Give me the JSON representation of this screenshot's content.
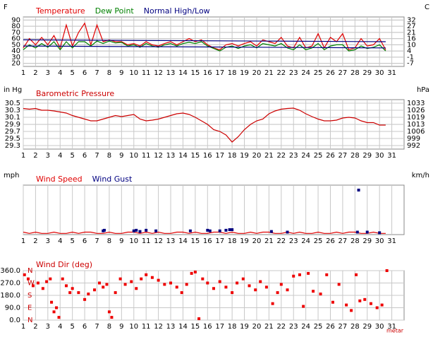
{
  "chart_data": [
    {
      "type": "line",
      "ylabel": "F",
      "y2label": "C",
      "xlim": [
        1,
        32
      ],
      "xticks": [
        1,
        2,
        3,
        4,
        5,
        6,
        7,
        8,
        9,
        10,
        11,
        12,
        13,
        14,
        15,
        16,
        17,
        18,
        19,
        20,
        21,
        22,
        23,
        24,
        25,
        26,
        27,
        28,
        29,
        30,
        31
      ],
      "ylim": [
        15,
        95
      ],
      "yticks": [
        20,
        30,
        40,
        50,
        60,
        70,
        80,
        90
      ],
      "y2lim": [
        -9.4,
        35
      ],
      "y2ticks": [
        {
          "value": -6.7,
          "label": "-7"
        },
        {
          "value": -1.1,
          "label": "-1"
        },
        {
          "value": 4.4,
          "label": "4"
        },
        {
          "value": 10,
          "label": "10"
        },
        {
          "value": 15.6,
          "label": "16"
        },
        {
          "value": 21.1,
          "label": "21"
        },
        {
          "value": 26.7,
          "label": "27"
        },
        {
          "value": 32.2,
          "label": "32"
        }
      ],
      "grid": true,
      "x": [
        1,
        1.5,
        2,
        2.5,
        3,
        3.5,
        4,
        4.5,
        5,
        5.5,
        6,
        6.5,
        7,
        7.5,
        8,
        8.5,
        9,
        9.5,
        10,
        10.5,
        11,
        11.5,
        12,
        12.5,
        13,
        13.5,
        14,
        14.5,
        15,
        15.5,
        16,
        16.5,
        17,
        17.5,
        18,
        18.5,
        19,
        19.5,
        20,
        20.5,
        21,
        21.5,
        22,
        22.5,
        23,
        23.5,
        24,
        24.5,
        25,
        25.5,
        26,
        26.5,
        27,
        27.5,
        28,
        28.5,
        29,
        29.5,
        30,
        30.5
      ],
      "series": [
        {
          "name": "Temperature",
          "color": "#e00000",
          "type": "line",
          "values": [
            45,
            60,
            50,
            62,
            50,
            65,
            45,
            82,
            48,
            70,
            85,
            50,
            82,
            55,
            58,
            55,
            55,
            50,
            52,
            48,
            55,
            50,
            48,
            52,
            55,
            50,
            55,
            60,
            55,
            58,
            50,
            45,
            42,
            50,
            52,
            48,
            52,
            55,
            48,
            58,
            55,
            52,
            62,
            48,
            45,
            62,
            45,
            48,
            68,
            45,
            62,
            55,
            68,
            42,
            45,
            60,
            48,
            50,
            60,
            42
          ]
        },
        {
          "name": "Dew Point",
          "color": "#008000",
          "type": "line",
          "values": [
            42,
            50,
            45,
            52,
            46,
            55,
            42,
            55,
            45,
            55,
            55,
            48,
            56,
            52,
            56,
            53,
            54,
            48,
            50,
            46,
            52,
            48,
            46,
            50,
            52,
            48,
            52,
            54,
            52,
            55,
            48,
            44,
            40,
            46,
            48,
            44,
            48,
            50,
            45,
            52,
            50,
            48,
            52,
            45,
            42,
            50,
            42,
            45,
            52,
            42,
            48,
            50,
            50,
            40,
            42,
            48,
            44,
            46,
            50,
            40
          ]
        },
        {
          "name": "Normal High/Low",
          "color": "#000080",
          "type": "line",
          "x": [
            1,
            30.5,
            null,
            1,
            30.5
          ],
          "values": [
            58,
            55,
            null,
            48,
            45
          ]
        }
      ]
    },
    {
      "type": "line",
      "title": "Barometric Pressure",
      "title_color": "#cc0000",
      "ylabel": "in Hg",
      "y2label": "hPa",
      "xlim": [
        1,
        32
      ],
      "xticks": [
        1,
        2,
        3,
        4,
        5,
        6,
        7,
        8,
        9,
        10,
        11,
        12,
        13,
        14,
        15,
        16,
        17,
        18,
        19,
        20,
        21,
        22,
        23,
        24,
        25,
        26,
        27,
        28,
        29,
        30,
        31
      ],
      "ylim": [
        29.2,
        30.6
      ],
      "yticks": [
        29.3,
        29.5,
        29.7,
        29.9,
        30.1,
        30.3,
        30.5
      ],
      "y2lim": [
        988.8,
        1036.3
      ],
      "y2ticks": [
        {
          "value": 992.2,
          "label": "992"
        },
        {
          "value": 999.0,
          "label": "999"
        },
        {
          "value": 1005.8,
          "label": "1006"
        },
        {
          "value": 1012.5,
          "label": "1013"
        },
        {
          "value": 1019.3,
          "label": "1019"
        },
        {
          "value": 1026.1,
          "label": "1026"
        },
        {
          "value": 1032.9,
          "label": "1033"
        }
      ],
      "grid": true,
      "x": [
        1,
        1.5,
        2,
        2.5,
        3,
        3.5,
        4,
        4.5,
        5,
        5.5,
        6,
        6.5,
        7,
        7.5,
        8,
        8.5,
        9,
        9.5,
        10,
        10.5,
        11,
        11.5,
        12,
        12.5,
        13,
        13.5,
        14,
        14.5,
        15,
        15.5,
        16,
        16.5,
        17,
        17.5,
        18,
        18.5,
        19,
        19.5,
        20,
        20.5,
        21,
        21.5,
        22,
        22.5,
        23,
        23.5,
        24,
        24.5,
        25,
        25.5,
        26,
        26.5,
        27,
        27.5,
        28,
        28.5,
        29,
        29.5,
        30,
        30.5
      ],
      "series": [
        {
          "color": "#cc0000",
          "type": "line",
          "values": [
            30.35,
            30.33,
            30.35,
            30.3,
            30.3,
            30.28,
            30.25,
            30.22,
            30.15,
            30.1,
            30.05,
            30.0,
            30.0,
            30.05,
            30.1,
            30.15,
            30.12,
            30.15,
            30.18,
            30.05,
            30.0,
            30.02,
            30.05,
            30.1,
            30.15,
            30.2,
            30.22,
            30.18,
            30.1,
            30.0,
            29.9,
            29.75,
            29.7,
            29.6,
            29.4,
            29.55,
            29.75,
            29.9,
            30.0,
            30.05,
            30.2,
            30.28,
            30.33,
            30.35,
            30.36,
            30.3,
            30.2,
            30.12,
            30.05,
            30.0,
            30.0,
            30.02,
            30.08,
            30.1,
            30.08,
            30.0,
            29.95,
            29.95,
            29.88,
            29.88
          ]
        }
      ]
    },
    {
      "type": "line",
      "ylabel": "mph",
      "y2label": "km/h",
      "xlim": [
        1,
        32
      ],
      "xticks": [
        1,
        2,
        3,
        4,
        5,
        6,
        7,
        8,
        9,
        10,
        11,
        12,
        13,
        14,
        15,
        16,
        17,
        18,
        19,
        20,
        21,
        22,
        23,
        24,
        25,
        26,
        27,
        28,
        29,
        30,
        31
      ],
      "ylim": [
        0,
        40
      ],
      "grid": true,
      "x": [
        1,
        1.5,
        2,
        2.5,
        3,
        3.5,
        4,
        4.5,
        5,
        5.5,
        6,
        6.5,
        7,
        7.5,
        8,
        8.5,
        9,
        9.5,
        10,
        10.5,
        11,
        11.5,
        12,
        12.5,
        13,
        13.5,
        14,
        14.5,
        15,
        15.5,
        16,
        16.5,
        17,
        17.5,
        18,
        18.5,
        19,
        19.5,
        20,
        20.5,
        21,
        21.5,
        22,
        22.5,
        23,
        23.5,
        24,
        24.5,
        25,
        25.5,
        26,
        26.5,
        27,
        27.5,
        28,
        28.5,
        29,
        29.5,
        30,
        30.5
      ],
      "series": [
        {
          "name": "Wind Speed",
          "color": "#e00000",
          "type": "line",
          "values": [
            2,
            1,
            2,
            1,
            1,
            2,
            1,
            1,
            2,
            1,
            2,
            2,
            1,
            1,
            2,
            1,
            1,
            2,
            2,
            1,
            2,
            1,
            2,
            1,
            1,
            2,
            2,
            1,
            2,
            1,
            1,
            2,
            2,
            1,
            2,
            1,
            1,
            2,
            1,
            2,
            2,
            1,
            1,
            2,
            1,
            2,
            1,
            1,
            2,
            1,
            1,
            2,
            1,
            2,
            2,
            1,
            1,
            2,
            1,
            1
          ]
        },
        {
          "name": "Wind Gust",
          "color": "#000080",
          "type": "scatter",
          "x": [
            7.5,
            7.6,
            10,
            10.2,
            10.5,
            11,
            11.8,
            14.6,
            16,
            16.2,
            17,
            17.5,
            17.8,
            18,
            21.2,
            22.5,
            28.2,
            28.3,
            29,
            30
          ],
          "values": [
            3,
            3.5,
            3,
            3.5,
            2.5,
            3.5,
            3,
            3,
            3.5,
            3,
            3,
            3.5,
            4,
            4,
            2.5,
            2,
            2,
            36,
            2,
            1.5
          ]
        }
      ]
    },
    {
      "type": "scatter",
      "title": "Wind Dir (deg)",
      "title_color": "#cc0000",
      "source": "metar",
      "xlim": [
        1,
        32
      ],
      "xticks": [
        1,
        2,
        3,
        4,
        5,
        6,
        7,
        8,
        9,
        10,
        11,
        12,
        13,
        14,
        15,
        16,
        17,
        18,
        19,
        20,
        21,
        22,
        23,
        24,
        25,
        26,
        27,
        28,
        29,
        30,
        31
      ],
      "ylim": [
        0,
        360
      ],
      "yticks": [
        {
          "value": 0,
          "label": "0.0"
        },
        {
          "value": 90,
          "label": "90.0"
        },
        {
          "value": 180,
          "label": "180.0"
        },
        {
          "value": 270,
          "label": "270.0"
        },
        {
          "value": 360,
          "label": "360.0"
        }
      ],
      "compass_labels": [
        "N",
        "E",
        "S",
        "W",
        "N"
      ],
      "grid": true,
      "series": [
        {
          "color": "#ee0000",
          "type": "scatter",
          "x": [
            1.1,
            1.4,
            1.8,
            2.2,
            2.6,
            2.9,
            3.2,
            3.3,
            3.5,
            3.7,
            3.9,
            4.2,
            4.5,
            4.8,
            5,
            5.5,
            6,
            6.3,
            6.8,
            7.2,
            7.5,
            7.8,
            8,
            8.2,
            8.5,
            8.9,
            9.3,
            9.8,
            10.2,
            10.6,
            11,
            11.5,
            12,
            12.5,
            13,
            13.5,
            13.9,
            14.3,
            14.7,
            15,
            15.3,
            15.6,
            16,
            16.5,
            17,
            17.5,
            18,
            18.4,
            18.9,
            19.4,
            19.9,
            20.3,
            20.8,
            21.3,
            21.7,
            22,
            22.5,
            23,
            23.5,
            23.8,
            24.2,
            24.6,
            25.2,
            25.7,
            26.2,
            26.7,
            27.3,
            27.7,
            28.1,
            28.4,
            28.8,
            29.3,
            29.8,
            30.2,
            30.6
          ],
          "values": [
            330,
            300,
            250,
            270,
            230,
            280,
            300,
            130,
            60,
            90,
            20,
            300,
            250,
            200,
            230,
            200,
            150,
            190,
            220,
            270,
            240,
            260,
            60,
            20,
            200,
            300,
            260,
            280,
            230,
            300,
            330,
            310,
            290,
            260,
            270,
            240,
            200,
            260,
            340,
            350,
            10,
            300,
            270,
            230,
            280,
            240,
            200,
            270,
            300,
            250,
            220,
            280,
            240,
            120,
            200,
            260,
            220,
            320,
            330,
            100,
            340,
            210,
            190,
            330,
            130,
            260,
            110,
            70,
            330,
            140,
            150,
            120,
            90,
            110,
            360
          ]
        }
      ]
    }
  ]
}
